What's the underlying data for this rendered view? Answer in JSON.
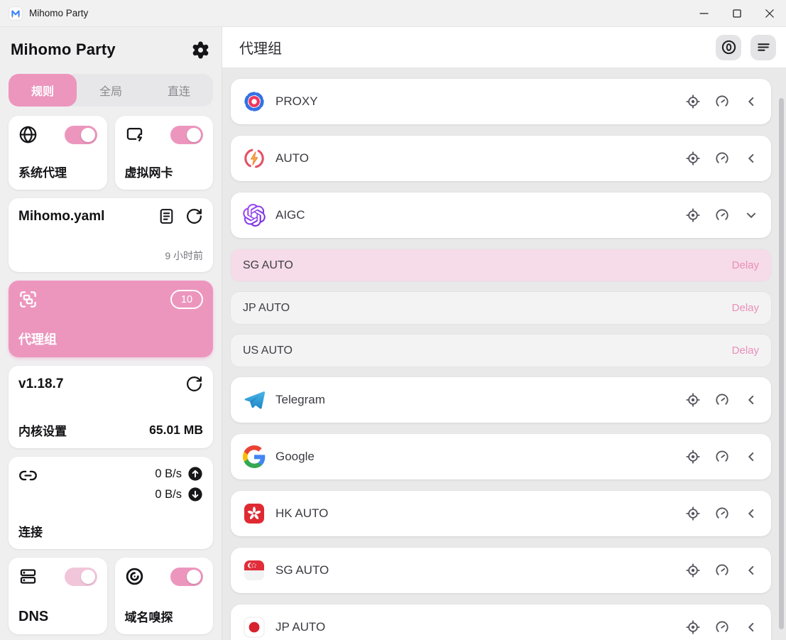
{
  "window": {
    "title": "Mihomo Party"
  },
  "sidebar": {
    "title": "Mihomo Party",
    "tabs": [
      {
        "label": "规则",
        "active": true
      },
      {
        "label": "全局",
        "active": false
      },
      {
        "label": "直连",
        "active": false
      }
    ],
    "system_proxy": {
      "label": "系统代理",
      "enabled": true
    },
    "tun": {
      "label": "虚拟网卡",
      "enabled": true
    },
    "profile": {
      "name": "Mihomo.yaml",
      "updated": "9 小时前"
    },
    "proxy_groups_nav": {
      "label": "代理组",
      "count": "10"
    },
    "core": {
      "version": "v1.18.7",
      "label": "内核设置",
      "memory": "65.01 MB"
    },
    "connection": {
      "label": "连接",
      "upload": "0 B/s",
      "download": "0 B/s"
    },
    "dns": {
      "label": "DNS",
      "enabled": true
    },
    "sniff": {
      "label": "域名嗅探",
      "enabled": true
    }
  },
  "main": {
    "title": "代理组",
    "groups": [
      {
        "name": "PROXY",
        "icon": "proxy",
        "expanded": false
      },
      {
        "name": "AUTO",
        "icon": "auto",
        "expanded": false
      },
      {
        "name": "AIGC",
        "icon": "openai",
        "expanded": true,
        "children": [
          {
            "name": "SG AUTO",
            "selected": true,
            "action": "Delay"
          },
          {
            "name": "JP AUTO",
            "selected": false,
            "action": "Delay"
          },
          {
            "name": "US AUTO",
            "selected": false,
            "action": "Delay"
          }
        ]
      },
      {
        "name": "Telegram",
        "icon": "telegram",
        "expanded": false
      },
      {
        "name": "Google",
        "icon": "google",
        "expanded": false
      },
      {
        "name": "HK AUTO",
        "icon": "flag-hk",
        "expanded": false
      },
      {
        "name": "SG AUTO",
        "icon": "flag-sg",
        "expanded": false
      },
      {
        "name": "JP AUTO",
        "icon": "flag-jp",
        "expanded": false
      }
    ]
  },
  "colors": {
    "accent_pink": "#ec96be",
    "accent_pink_light": "#f2c6da",
    "selected_row_pink": "#f6dbe8",
    "delay_text_pink": "#e98fb9"
  }
}
